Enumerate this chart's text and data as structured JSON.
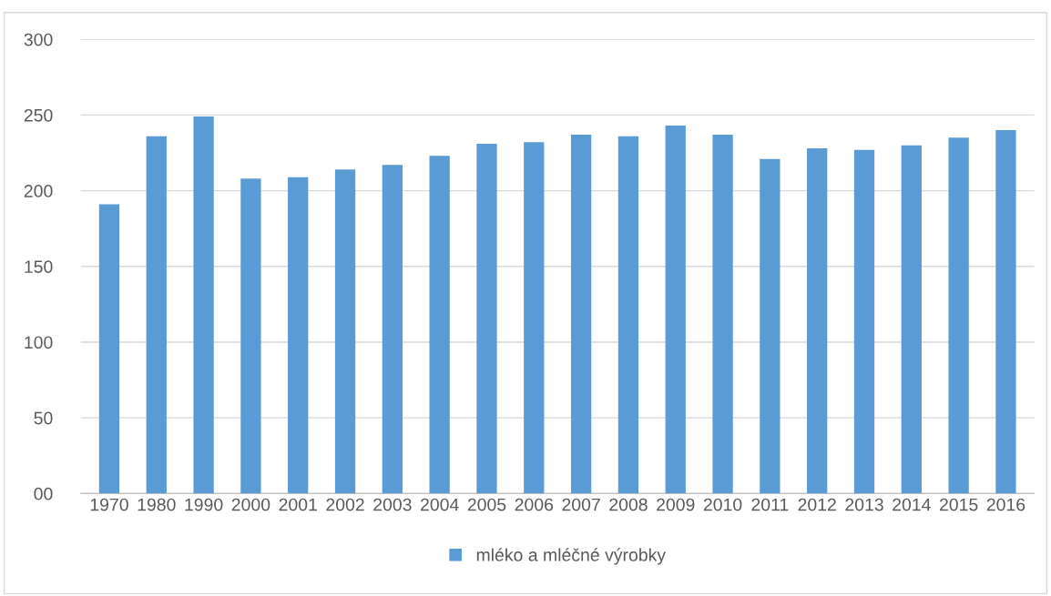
{
  "chart_data": {
    "type": "bar",
    "categories": [
      "1970",
      "1980",
      "1990",
      "2000",
      "2001",
      "2002",
      "2003",
      "2004",
      "2005",
      "2006",
      "2007",
      "2008",
      "2009",
      "2010",
      "2011",
      "2012",
      "2013",
      "2014",
      "2015",
      "2016"
    ],
    "series": [
      {
        "name": "mléko a mléčné výrobky",
        "color": "#5b9bd5",
        "values": [
          191,
          236,
          249,
          208,
          209,
          214,
          217,
          223,
          231,
          232,
          237,
          236,
          243,
          237,
          221,
          228,
          227,
          230,
          235,
          240
        ]
      }
    ],
    "ylim": [
      0,
      300
    ],
    "yticks": [
      {
        "value": 0,
        "label": "00"
      },
      50,
      100,
      150,
      200,
      250,
      300
    ],
    "grid": "y",
    "legend": "bottom"
  }
}
